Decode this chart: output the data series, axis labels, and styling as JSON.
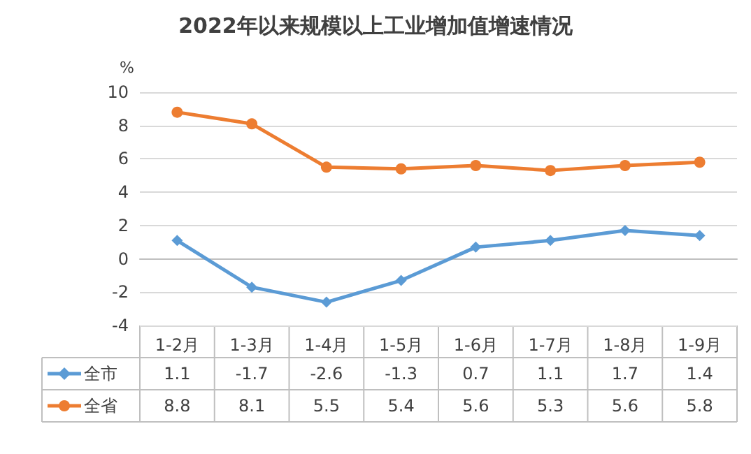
{
  "chart_data": {
    "type": "line",
    "title": "2022年以来规模以上工业增加值增速情况",
    "ylabel": "%",
    "categories": [
      "1-2月",
      "1-3月",
      "1-4月",
      "1-5月",
      "1-6月",
      "1-7月",
      "1-8月",
      "1-9月"
    ],
    "series": [
      {
        "name": "全市",
        "color": "#5b9bd5",
        "marker": "diamond",
        "values": [
          1.1,
          -1.7,
          -2.6,
          -1.3,
          0.7,
          1.1,
          1.7,
          1.4
        ]
      },
      {
        "name": "全省",
        "color": "#ed7d31",
        "marker": "circle",
        "values": [
          8.8,
          8.1,
          5.5,
          5.4,
          5.6,
          5.3,
          5.6,
          5.8
        ]
      }
    ],
    "ylim": [
      -4,
      10
    ],
    "yticks": [
      -4,
      -2,
      0,
      2,
      4,
      6,
      8,
      10
    ],
    "grid": "y",
    "legend": "bottom",
    "data_labels": true,
    "line_style": "solid"
  }
}
